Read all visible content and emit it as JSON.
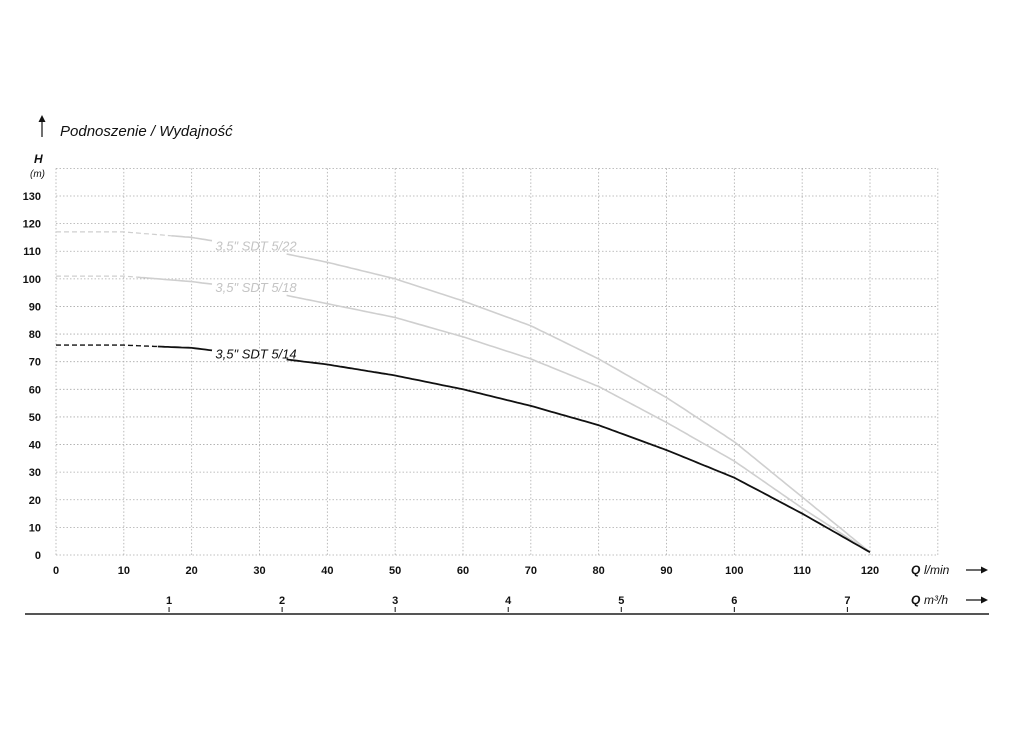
{
  "chart_data": {
    "type": "line",
    "title": "Podnoszenie / Wydajność",
    "ylabel": "H",
    "yunit": "(m)",
    "xlabel": "Q",
    "xunit": "l/min",
    "x2label": "Q",
    "x2unit": "m³/h",
    "xlim": [
      0,
      130
    ],
    "ylim": [
      0,
      140
    ],
    "xticks": [
      0,
      10,
      20,
      30,
      40,
      50,
      60,
      70,
      80,
      90,
      100,
      110,
      120
    ],
    "yticks": [
      0,
      10,
      20,
      30,
      40,
      50,
      60,
      70,
      80,
      90,
      100,
      110,
      120,
      130
    ],
    "x2ticks": [
      1,
      2,
      3,
      4,
      5,
      6,
      7
    ],
    "grid": true,
    "series": [
      {
        "name": "3,5\" SDT 5/22",
        "color": "#cfcfcf",
        "dashed_until": 17,
        "x": [
          0,
          10,
          20,
          30,
          40,
          50,
          60,
          70,
          80,
          90,
          100,
          110,
          120
        ],
        "y": [
          117,
          117,
          115,
          111,
          106,
          100,
          92,
          83,
          71,
          57,
          41,
          21,
          1
        ]
      },
      {
        "name": "3,5\" SDT 5/18",
        "color": "#cfcfcf",
        "dashed_until": 12,
        "x": [
          0,
          10,
          20,
          30,
          40,
          50,
          60,
          70,
          80,
          90,
          100,
          110,
          120
        ],
        "y": [
          101,
          101,
          99,
          96,
          91,
          86,
          79,
          71,
          61,
          48,
          34,
          17,
          1
        ]
      },
      {
        "name": "3,5\" SDT 5/14",
        "color": "#111111",
        "dashed_until": 15,
        "x": [
          0,
          10,
          20,
          30,
          40,
          50,
          60,
          70,
          80,
          90,
          100,
          110,
          120
        ],
        "y": [
          76,
          76,
          75,
          72,
          69,
          65,
          60,
          54,
          47,
          38,
          28,
          15,
          1
        ]
      }
    ]
  }
}
